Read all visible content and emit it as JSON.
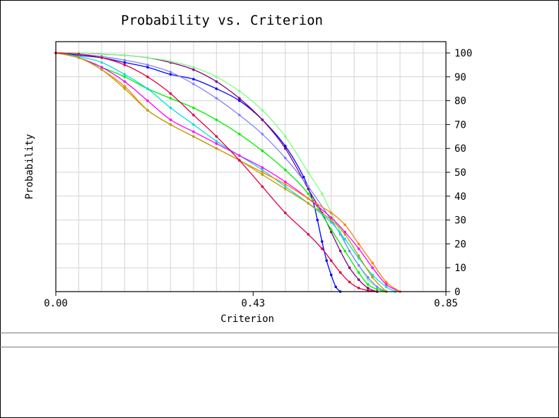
{
  "chart_data": {
    "type": "line",
    "title": "Probability vs. Criterion",
    "xlabel": "Criterion",
    "ylabel": "Probability",
    "xlim": [
      0,
      0.85
    ],
    "ylim": [
      0,
      100
    ],
    "x_ticks": [
      "0.00",
      "0.43",
      "0.85"
    ],
    "y_ticks": [
      "0",
      "10",
      "20",
      "30",
      "40",
      "50",
      "60",
      "70",
      "80",
      "90",
      "100"
    ],
    "grid": true,
    "legend": "none",
    "series": [
      {
        "name": "series-blue",
        "color": "#0000ff",
        "marker": "dot",
        "x": [
          0.0,
          0.05,
          0.1,
          0.15,
          0.2,
          0.25,
          0.3,
          0.35,
          0.4,
          0.45,
          0.5,
          0.54,
          0.56,
          0.57,
          0.58,
          0.59,
          0.6,
          0.61,
          0.62
        ],
        "y": [
          100,
          99,
          98,
          96,
          94,
          91,
          89,
          85,
          80,
          72,
          61,
          48,
          38,
          30,
          21,
          13,
          7,
          2,
          0
        ]
      },
      {
        "name": "series-purple",
        "color": "#800080",
        "marker": "dot",
        "x": [
          0.0,
          0.05,
          0.1,
          0.15,
          0.2,
          0.25,
          0.3,
          0.35,
          0.4,
          0.45,
          0.5,
          0.55,
          0.58,
          0.6,
          0.62,
          0.64,
          0.66,
          0.68,
          0.7
        ],
        "y": [
          100,
          100,
          99.5,
          99,
          98,
          96,
          93,
          88,
          81,
          72,
          60,
          43,
          33,
          25,
          17,
          10,
          5,
          1.5,
          0
        ]
      },
      {
        "name": "series-light-green",
        "color": "#80ff80",
        "marker": "dot",
        "x": [
          0.0,
          0.05,
          0.1,
          0.15,
          0.2,
          0.25,
          0.3,
          0.35,
          0.4,
          0.45,
          0.5,
          0.55,
          0.58,
          0.6,
          0.62,
          0.64,
          0.66,
          0.68,
          0.7,
          0.72
        ],
        "y": [
          100,
          100,
          99.5,
          99,
          98,
          96.5,
          94,
          90,
          84,
          76,
          65,
          50,
          41,
          33,
          25,
          17,
          11,
          5,
          2,
          0
        ]
      },
      {
        "name": "series-lavender",
        "color": "#8080ff",
        "marker": "dot",
        "x": [
          0.0,
          0.05,
          0.1,
          0.15,
          0.2,
          0.25,
          0.3,
          0.35,
          0.4,
          0.45,
          0.5,
          0.55,
          0.6,
          0.62,
          0.64,
          0.66,
          0.68,
          0.7,
          0.72
        ],
        "y": [
          100,
          99.5,
          98.5,
          97,
          95,
          92,
          87,
          81,
          74,
          66,
          56,
          44,
          30,
          24,
          17,
          11,
          6,
          2,
          0
        ]
      },
      {
        "name": "series-green",
        "color": "#00ee00",
        "marker": "dot",
        "x": [
          0.0,
          0.05,
          0.1,
          0.15,
          0.2,
          0.25,
          0.3,
          0.35,
          0.4,
          0.45,
          0.5,
          0.55,
          0.6,
          0.63,
          0.66,
          0.68,
          0.7,
          0.72
        ],
        "y": [
          100,
          98,
          94,
          90,
          85,
          81,
          77,
          72,
          66,
          59,
          51,
          41,
          26,
          17,
          8,
          3,
          1,
          0
        ]
      },
      {
        "name": "series-cyan",
        "color": "#00e0e0",
        "marker": "dot",
        "x": [
          0.0,
          0.05,
          0.1,
          0.15,
          0.2,
          0.25,
          0.3,
          0.35,
          0.4,
          0.45,
          0.5,
          0.55,
          0.6,
          0.63,
          0.66,
          0.69,
          0.72,
          0.74
        ],
        "y": [
          100,
          98.5,
          96,
          91,
          85,
          77,
          70,
          63,
          57,
          51,
          44,
          37,
          29,
          22,
          14,
          7,
          2,
          0
        ]
      },
      {
        "name": "series-magenta",
        "color": "#ff00ff",
        "marker": "dot",
        "x": [
          0.0,
          0.05,
          0.1,
          0.15,
          0.2,
          0.25,
          0.3,
          0.35,
          0.4,
          0.45,
          0.5,
          0.55,
          0.6,
          0.63,
          0.66,
          0.69,
          0.72,
          0.75
        ],
        "y": [
          100,
          98,
          94,
          88,
          80,
          72,
          67,
          62,
          57,
          52,
          46,
          39,
          31,
          25,
          18,
          10,
          3,
          0
        ]
      },
      {
        "name": "series-orange",
        "color": "#ff8000",
        "marker": "dot",
        "x": [
          0.0,
          0.05,
          0.1,
          0.15,
          0.2,
          0.25,
          0.3,
          0.35,
          0.4,
          0.45,
          0.5,
          0.55,
          0.6,
          0.63,
          0.66,
          0.69,
          0.72,
          0.75
        ],
        "y": [
          100,
          98,
          93,
          86,
          76,
          70,
          65,
          60,
          55,
          50,
          45,
          39,
          33,
          28,
          20,
          12,
          4,
          0
        ]
      },
      {
        "name": "series-olive",
        "color": "#b8a000",
        "marker": "dot",
        "x": [
          0.0,
          0.05,
          0.1,
          0.15,
          0.2,
          0.25,
          0.3,
          0.35,
          0.4,
          0.45,
          0.5,
          0.55,
          0.6,
          0.63,
          0.66,
          0.69,
          0.72
        ],
        "y": [
          100,
          98,
          93,
          85,
          76,
          70,
          65,
          60,
          55,
          49,
          43,
          37,
          30,
          24,
          15,
          6,
          0
        ]
      },
      {
        "name": "series-crimson",
        "color": "#e00040",
        "marker": "dot",
        "x": [
          0.0,
          0.05,
          0.1,
          0.15,
          0.2,
          0.25,
          0.3,
          0.35,
          0.4,
          0.45,
          0.5,
          0.55,
          0.58,
          0.6,
          0.62,
          0.64,
          0.66,
          0.68,
          0.7
        ],
        "y": [
          100,
          99.5,
          98,
          95,
          90,
          83,
          74,
          65,
          55,
          44,
          33,
          24,
          18,
          13,
          8,
          4,
          1.5,
          0.5,
          0
        ]
      }
    ]
  }
}
